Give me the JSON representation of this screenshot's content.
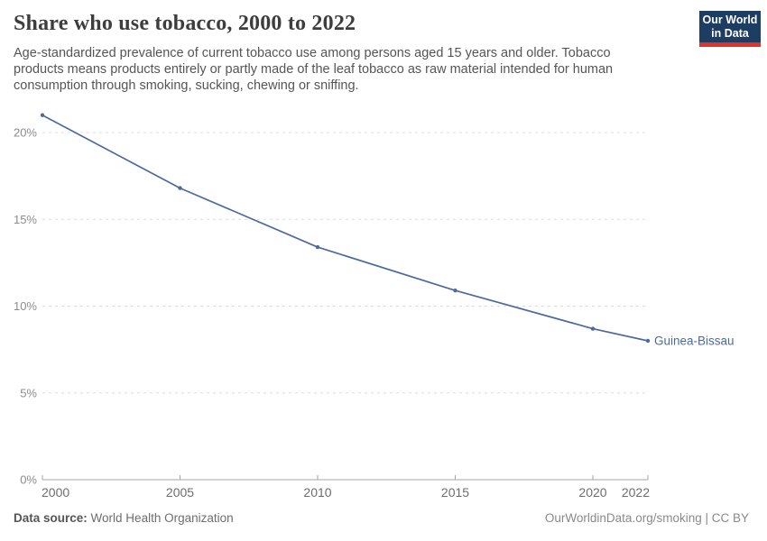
{
  "header": {
    "title": "Share who use tobacco, 2000 to 2022",
    "subtitle": "Age-standardized prevalence of current tobacco use among persons aged 15 years and older. Tobacco products means products entirely or partly made of the leaf tobacco as raw material intended for human consumption through smoking, sucking, chewing or sniffing.",
    "logo_line1": "Our World",
    "logo_line2": "in Data"
  },
  "chart_data": {
    "type": "line",
    "title": "Share who use tobacco, 2000 to 2022",
    "x": [
      2000,
      2005,
      2010,
      2015,
      2020,
      2022
    ],
    "series": [
      {
        "name": "Guinea-Bissau",
        "values": [
          21.0,
          16.8,
          13.4,
          10.9,
          8.7,
          8.0
        ]
      }
    ],
    "xlabel": "",
    "ylabel": "",
    "xlim": [
      2000,
      2022
    ],
    "ylim": [
      0,
      21
    ],
    "yticks": [
      0,
      5,
      10,
      15,
      20
    ],
    "ytick_suffix": "%",
    "xticks": [
      2000,
      2005,
      2010,
      2015,
      2020,
      2022
    ],
    "grid": "dashed horizontal gridlines, solid baseline at 0%",
    "legend": "entity label at end of line",
    "line_color": "#4C6A9C",
    "marker": "small filled circle at each data point"
  },
  "footer": {
    "data_source_label": "Data source:",
    "data_source_value": "World Health Organization",
    "credit": "OurWorldinData.org/smoking | CC BY"
  },
  "colors": {
    "accent_line": "#4C6A9C",
    "logo_bg": "#1d3d63",
    "logo_stripe": "#dc362c",
    "gridline": "#dcdcdc",
    "axis": "#a6a6a6",
    "ytick_label": "#8c8c8c",
    "xtick_label": "#6e6e6e",
    "title_text": "#3d3d3d",
    "subtitle_text": "#555555"
  }
}
